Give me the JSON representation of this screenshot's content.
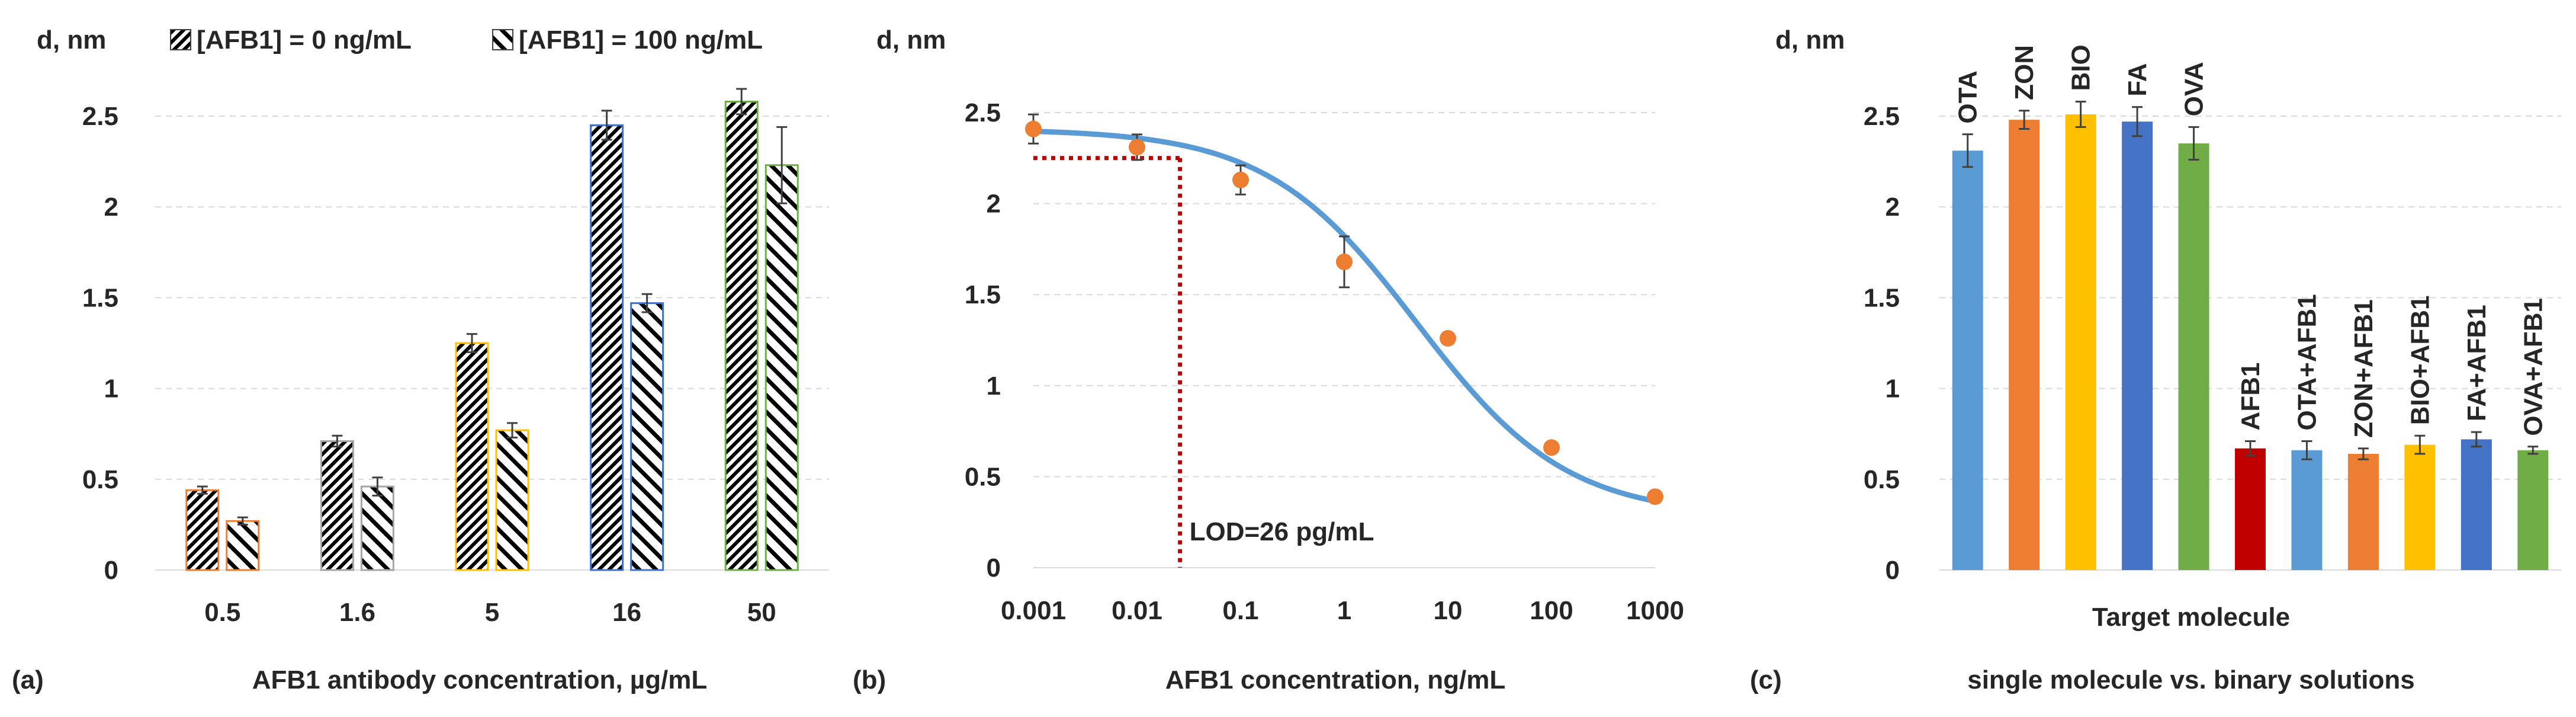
{
  "chart_data": [
    {
      "panel_label": "(a)",
      "type": "bar",
      "ylabel": "d, nm",
      "xlabel": "AFB1 antibody concentration, µg/mL",
      "ylim": [
        0,
        2.5
      ],
      "yticks": [
        0,
        0.5,
        1,
        1.5,
        2,
        2.5
      ],
      "categories": [
        "0.5",
        "1.6",
        "5",
        "16",
        "50"
      ],
      "category_colors": [
        "#ED7D31",
        "#A5A5A5",
        "#FFC000",
        "#4472C4",
        "#70AD47"
      ],
      "legend": [
        "[AFB1] = 0 ng/mL",
        "[AFB1] = 100 ng/mL"
      ],
      "legend_position": "top",
      "grid": true,
      "series": [
        {
          "name": "[AFB1] = 0 ng/mL",
          "pattern": "dense-diagonal",
          "values": [
            0.44,
            0.71,
            1.25,
            2.45,
            2.58
          ],
          "errors": [
            0.02,
            0.03,
            0.05,
            0.08,
            0.07
          ]
        },
        {
          "name": "[AFB1] = 100 ng/mL",
          "pattern": "wide-diagonal",
          "values": [
            0.27,
            0.46,
            0.77,
            1.47,
            2.23
          ],
          "errors": [
            0.02,
            0.05,
            0.04,
            0.05,
            0.21
          ]
        }
      ]
    },
    {
      "panel_label": "(b)",
      "type": "scatter",
      "ylabel": "d, nm",
      "xlabel": "AFB1 concentration, ng/mL",
      "xscale": "log",
      "xlim": [
        0.001,
        1000
      ],
      "xticks": [
        "0.001",
        "0.01",
        "0.1",
        "1",
        "10",
        "100",
        "1000"
      ],
      "ylim": [
        0,
        2.5
      ],
      "yticks": [
        0,
        0.5,
        1,
        1.5,
        2,
        2.5
      ],
      "grid": true,
      "points": {
        "x": [
          0.001,
          0.01,
          0.1,
          1,
          10,
          100,
          1000
        ],
        "y": [
          2.41,
          2.31,
          2.13,
          1.68,
          1.26,
          0.66,
          0.39
        ],
        "errors": [
          0.08,
          0.07,
          0.08,
          0.14,
          0.03,
          0.03,
          0.02
        ],
        "color": "#ED7D31"
      },
      "fit_curve": {
        "model": "sigmoid",
        "top": 2.41,
        "bottom": 0.28,
        "ec50": 5,
        "slope": 0.6,
        "color": "#5B9BD5"
      },
      "lod": {
        "x": 0.026,
        "y": 2.25,
        "label": "LOD=26 pg/mL",
        "color": "#C00000"
      }
    },
    {
      "panel_label": "(c)",
      "type": "bar",
      "ylabel": "d, nm",
      "xlabel": "Target molecule",
      "subtitle": "single molecule vs. binary solutions",
      "ylim": [
        0,
        2.5
      ],
      "yticks": [
        0,
        0.5,
        1,
        1.5,
        2,
        2.5
      ],
      "grid": true,
      "categories": [
        "OTA",
        "ZON",
        "BIO",
        "FA",
        "OVA",
        "AFB1",
        "OTA+AFB1",
        "ZON+AFB1",
        "BIO+AFB1",
        "FA+AFB1",
        "OVA+AFB1"
      ],
      "values": [
        2.31,
        2.48,
        2.51,
        2.47,
        2.35,
        0.67,
        0.66,
        0.64,
        0.69,
        0.72,
        0.66
      ],
      "errors": [
        0.09,
        0.05,
        0.07,
        0.08,
        0.09,
        0.04,
        0.05,
        0.03,
        0.05,
        0.04,
        0.02
      ],
      "colors": [
        "#5B9BD5",
        "#ED7D31",
        "#FFC000",
        "#4472C4",
        "#70AD47",
        "#C00000",
        "#5B9BD5",
        "#ED7D31",
        "#FFC000",
        "#4472C4",
        "#70AD47"
      ]
    }
  ]
}
